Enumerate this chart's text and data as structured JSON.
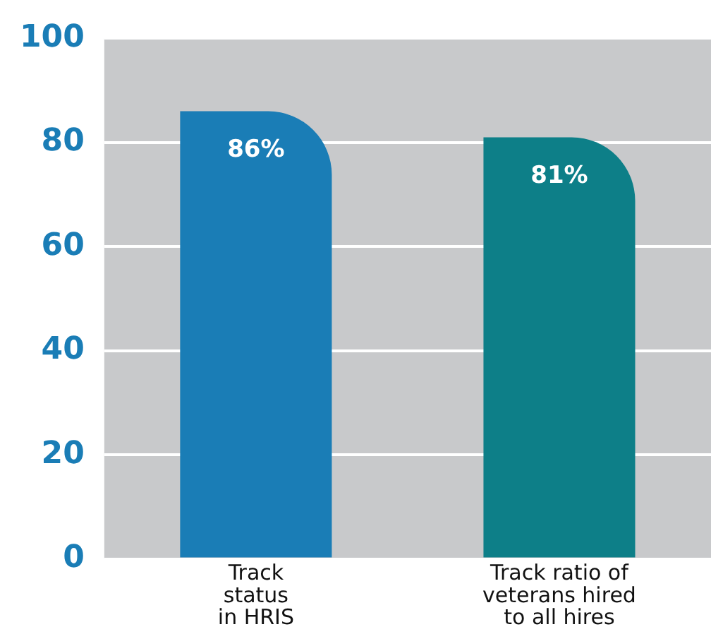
{
  "chart_data": {
    "type": "bar",
    "categories": [
      "Track\nstatus\nin HRIS",
      "Track ratio of\nveterans hired\nto all hires"
    ],
    "values": [
      86,
      81
    ],
    "value_labels": [
      "86%",
      "81%"
    ],
    "colors": [
      "#1a7db6",
      "#0d7f88"
    ],
    "ylim": [
      0,
      100
    ],
    "yticks": [
      0,
      20,
      40,
      60,
      80,
      100
    ],
    "grid": "y",
    "legend": false
  }
}
